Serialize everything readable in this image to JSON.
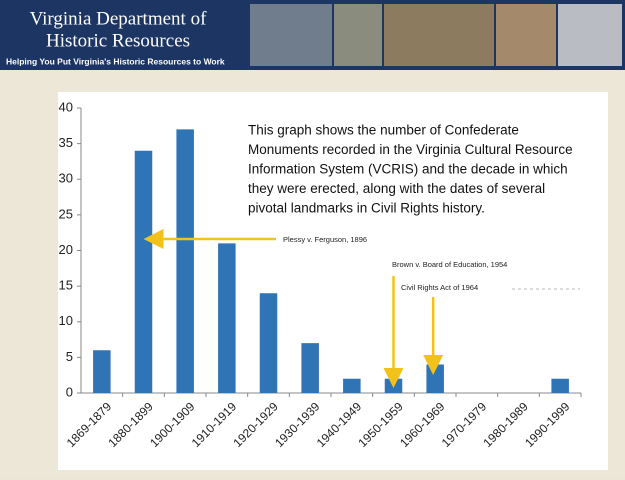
{
  "header": {
    "title_lines": [
      "Virginia Department of",
      "Historic Resources"
    ],
    "tagline": "Helping You Put Virginia's Historic Resources to Work"
  },
  "chart_data": {
    "type": "bar",
    "note_lines": [
      "This graph shows the number of Confederate",
      "Monuments recorded in the Virginia Cultural Resource",
      "Information System (VCRIS) and the decade in which",
      "they were erected, along with the dates of several",
      "pivotal landmarks in Civil Rights history."
    ],
    "annotations": [
      "Plessy v. Ferguson, 1896",
      "Brown v. Board of Education, 1954",
      "Civil Rights Act of 1964"
    ],
    "categories": [
      "1869-1879",
      "1880-1899",
      "1900-1909",
      "1910-1919",
      "1920-1929",
      "1930-1939",
      "1940-1949",
      "1950-1959",
      "1960-1969",
      "1970-1979",
      "1980-1989",
      "1990-1999"
    ],
    "values": [
      6,
      34,
      37,
      21,
      14,
      7,
      2,
      2,
      4,
      0,
      0,
      2
    ],
    "color": "#2f74b5",
    "ylim": [
      0,
      40
    ],
    "yticks": [
      0,
      5,
      10,
      15,
      20,
      25,
      30,
      35,
      40
    ],
    "grid": false
  }
}
